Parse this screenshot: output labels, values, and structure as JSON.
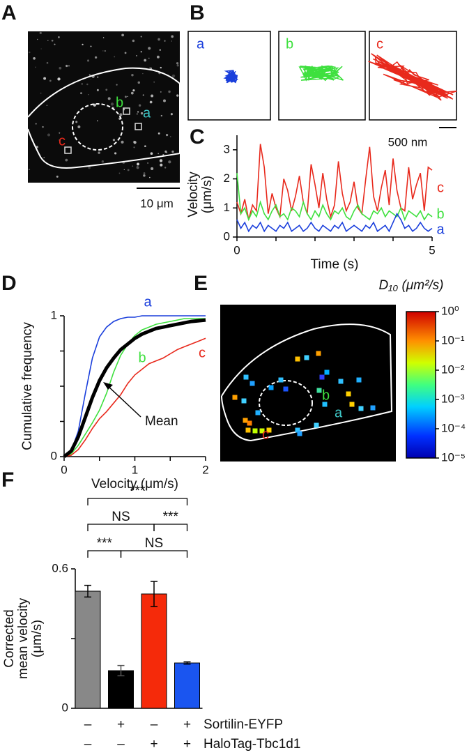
{
  "panels": [
    "A",
    "B",
    "C",
    "D",
    "E",
    "F"
  ],
  "image_a": {
    "labels": [
      "a",
      "b",
      "c"
    ],
    "scale": "10 μm"
  },
  "trajectories": {
    "labels": [
      "a",
      "b",
      "c"
    ],
    "scale": "500 nm"
  },
  "image_e": {
    "labels": [
      "a",
      "b",
      "c"
    ]
  },
  "chart_data": [
    {
      "type": "line",
      "xlabel": "Time (s)",
      "ylabel": [
        "Velocity",
        "(μm/s)"
      ],
      "xlim": [
        0,
        5
      ],
      "xticks": [
        0,
        5
      ],
      "xminor": [
        1,
        2,
        3,
        4
      ],
      "ylim": [
        0,
        3.5
      ],
      "yticks": [
        0,
        1,
        2,
        3
      ],
      "x": [
        0,
        0.1,
        0.2,
        0.3,
        0.4,
        0.5,
        0.6,
        0.7,
        0.8,
        0.9,
        1,
        1.1,
        1.2,
        1.3,
        1.4,
        1.5,
        1.6,
        1.7,
        1.8,
        1.9,
        2,
        2.1,
        2.2,
        2.3,
        2.4,
        2.5,
        2.6,
        2.7,
        2.8,
        2.9,
        3,
        3.1,
        3.2,
        3.3,
        3.4,
        3.5,
        3.6,
        3.7,
        3.8,
        3.9,
        4,
        4.1,
        4.2,
        4.3,
        4.4,
        4.5,
        4.6,
        4.7,
        4.8,
        4.9,
        5
      ],
      "series": [
        {
          "name": "c",
          "color": "#e8291c",
          "values": [
            1.2,
            0.8,
            1.3,
            0.6,
            1.1,
            0.9,
            3.2,
            2.4,
            0.8,
            1.5,
            1.0,
            0.7,
            2.0,
            1.6,
            0.9,
            1.4,
            2.1,
            1.2,
            0.8,
            2.5,
            1.8,
            1.0,
            2.2,
            1.3,
            0.7,
            1.1,
            2.6,
            1.5,
            0.9,
            1.2,
            1.9,
            1.0,
            0.8,
            2.0,
            3.1,
            1.4,
            0.9,
            1.7,
            2.3,
            1.1,
            2.7,
            1.6,
            1.0,
            0.9,
            2.4,
            1.3,
            1.8,
            2.2,
            0.9,
            2.4,
            2.3
          ]
        },
        {
          "name": "b",
          "color": "#3ee03e",
          "values": [
            2.2,
            0.8,
            1.0,
            0.6,
            0.9,
            0.7,
            1.2,
            0.8,
            0.6,
            0.9,
            1.1,
            0.7,
            0.8,
            0.6,
            1.0,
            0.9,
            0.7,
            1.2,
            0.8,
            0.6,
            0.9,
            0.7,
            1.1,
            0.8,
            0.6,
            0.9,
            0.8,
            1.0,
            0.7,
            0.6,
            0.9,
            1.1,
            0.8,
            0.7,
            0.6,
            0.9,
            0.8,
            1.0,
            0.7,
            0.9,
            0.8,
            0.7,
            1.0,
            0.6,
            0.9,
            0.8,
            0.7,
            0.9,
            0.6,
            0.8,
            0.7
          ]
        },
        {
          "name": "a",
          "color": "#1a3fdc",
          "values": [
            0.6,
            0.3,
            0.5,
            0.2,
            0.4,
            0.3,
            0.5,
            0.2,
            0.4,
            0.3,
            0.2,
            0.4,
            0.3,
            0.5,
            0.2,
            0.3,
            0.4,
            0.2,
            0.3,
            0.5,
            0.3,
            0.2,
            0.4,
            0.3,
            0.2,
            0.4,
            0.3,
            0.5,
            0.2,
            0.3,
            0.4,
            0.3,
            0.2,
            0.4,
            0.3,
            0.5,
            0.2,
            0.3,
            0.4,
            0.2,
            0.5,
            0.8,
            0.6,
            0.3,
            0.4,
            0.2,
            0.3,
            0.5,
            0.3,
            0.2,
            0.3
          ]
        }
      ]
    },
    {
      "type": "line",
      "xlabel": "Velocity (μm/s)",
      "ylabel": [
        "Cumulative frequency"
      ],
      "xlim": [
        0,
        2
      ],
      "xticks": [
        0,
        1,
        2
      ],
      "xminor": [
        0.5,
        1.5
      ],
      "ylim": [
        0,
        1
      ],
      "yticks": [
        0,
        1
      ],
      "yminor": [
        0.25,
        0.5,
        0.75
      ],
      "x": [
        0,
        0.1,
        0.2,
        0.3,
        0.4,
        0.5,
        0.6,
        0.7,
        0.8,
        0.9,
        1,
        1.1,
        1.2,
        1.3,
        1.4,
        1.5,
        1.6,
        1.7,
        1.8,
        1.9,
        2
      ],
      "series": [
        {
          "name": "a",
          "color": "#1a3fdc",
          "values": [
            0,
            0.04,
            0.18,
            0.45,
            0.7,
            0.85,
            0.92,
            0.96,
            0.98,
            0.99,
            0.99,
            1,
            1,
            1,
            1,
            1,
            1,
            1,
            1,
            1,
            1
          ]
        },
        {
          "name": "b",
          "color": "#3ee03e",
          "values": [
            0,
            0.02,
            0.08,
            0.16,
            0.24,
            0.33,
            0.45,
            0.6,
            0.72,
            0.8,
            0.86,
            0.9,
            0.92,
            0.94,
            0.95,
            0.96,
            0.97,
            0.98,
            0.98,
            0.98,
            0.98
          ]
        },
        {
          "name": "c",
          "color": "#e8291c",
          "values": [
            0,
            0.01,
            0.05,
            0.12,
            0.2,
            0.27,
            0.32,
            0.38,
            0.44,
            0.52,
            0.58,
            0.62,
            0.66,
            0.68,
            0.7,
            0.73,
            0.76,
            0.78,
            0.8,
            0.82,
            0.84
          ]
        },
        {
          "name": "Mean",
          "color": "#000000",
          "values": [
            0,
            0.04,
            0.14,
            0.28,
            0.42,
            0.54,
            0.63,
            0.7,
            0.76,
            0.8,
            0.84,
            0.87,
            0.89,
            0.91,
            0.92,
            0.93,
            0.94,
            0.95,
            0.96,
            0.965,
            0.97
          ]
        }
      ]
    },
    {
      "type": "colorbar",
      "title": "D₁₀ (μm²/s)",
      "log": true,
      "ylim": [
        1e-05,
        1
      ],
      "yticks": [
        {
          "value": 1,
          "label": "10⁰"
        },
        {
          "value": 0.1,
          "label": "10⁻¹"
        },
        {
          "value": 0.01,
          "label": "10⁻²"
        },
        {
          "value": 0.001,
          "label": "10⁻³"
        },
        {
          "value": 0.0001,
          "label": "10⁻⁴"
        },
        {
          "value": 1e-05,
          "label": "10⁻⁵"
        }
      ]
    },
    {
      "type": "bar",
      "ylabel": [
        "Corrected",
        "mean velocity",
        "(μm/s)"
      ],
      "ylim": [
        0,
        0.6
      ],
      "yticks": [
        0,
        0.6
      ],
      "yminor": [
        0.3
      ],
      "values": [
        0.504,
        0.162,
        0.492,
        0.195
      ],
      "errors": [
        0.025,
        0.022,
        0.054,
        0.005
      ],
      "colors": [
        "#888888",
        "#000000",
        "#f52a0a",
        "#1a55f0"
      ],
      "conditions": [
        {
          "name": "Sortilin-EYFP",
          "values": [
            "–",
            "+",
            "–",
            "+"
          ]
        },
        {
          "name": "HaloTag-Tbc1d1",
          "values": [
            "–",
            "–",
            "+",
            "+"
          ]
        }
      ],
      "annotations": [
        {
          "label": "***",
          "from": 0,
          "to": 3
        },
        {
          "label": "NS",
          "from": 0,
          "to": 2
        },
        {
          "label": "***",
          "from": 2,
          "to": 3
        },
        {
          "label": "***",
          "from": 0,
          "to": 1
        },
        {
          "label": "NS",
          "from": 1,
          "to": 3
        }
      ]
    }
  ]
}
